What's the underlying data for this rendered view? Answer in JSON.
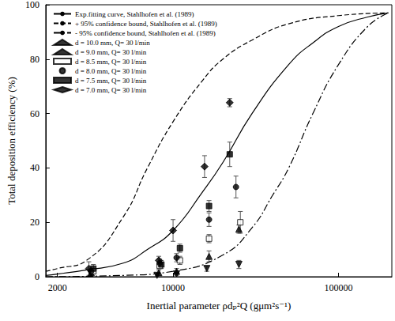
{
  "chart_data": {
    "type": "scatter",
    "x_label": "Inertial parameter ρdₚ²Q (gμm²s⁻¹)",
    "y_label": "Total deposition efficiency (%)",
    "log": "x",
    "xlim": [
      1700,
      210000
    ],
    "xticks": [
      2000,
      10000,
      100000
    ],
    "ylim": [
      0,
      100
    ],
    "yticks": [
      0,
      20,
      40,
      60,
      80,
      100
    ],
    "legend": "top-left",
    "grid": false,
    "series": [
      {
        "name": "Exp.fitting curve, Stahlhofen et al. (1989)",
        "type": "line",
        "line_style": "solid",
        "color": "#000000",
        "x": [
          1700,
          2000,
          3000,
          5000,
          7000,
          10000,
          15000,
          20000,
          30000,
          50000,
          70000,
          100000,
          150000,
          200000
        ],
        "values": [
          0.5,
          1,
          2.5,
          5,
          10,
          17,
          31,
          42,
          60,
          78,
          86,
          92,
          95.5,
          97
        ]
      },
      {
        "name": "+ 95% confidence bound, Stahlhofen et al. (1989)",
        "type": "line",
        "line_style": "dashed",
        "color": "#000000",
        "x": [
          1700,
          2000,
          3000,
          5000,
          7000,
          10000,
          15000,
          20000,
          30000,
          50000,
          100000,
          200000
        ],
        "values": [
          2,
          3,
          6,
          22,
          40,
          57,
          72,
          80,
          87,
          93,
          96,
          97
        ]
      },
      {
        "name": "- 95% confidence bound, Stahlhofen et al. (1989)",
        "type": "line",
        "line_style": "dashdot",
        "color": "#000000",
        "x": [
          1700,
          5000,
          10000,
          20000,
          30000,
          40000,
          50000,
          70000,
          100000,
          150000,
          200000
        ],
        "values": [
          0,
          0.5,
          2,
          8,
          18,
          30,
          40,
          60,
          78,
          92,
          97
        ]
      },
      {
        "name": "d = 10.0 mm, Q= 30 l/min",
        "type": "scatter",
        "marker": "triangle_down",
        "color": "#000000",
        "x": [
          3200,
          8000,
          10500,
          16000,
          25000
        ],
        "values": [
          1,
          0.5,
          1,
          3,
          4.5
        ],
        "errors": [
          1,
          0.5,
          0.5,
          1,
          1.5
        ]
      },
      {
        "name": "d = 9.0 mm, Q= 30 l/min",
        "type": "scatter",
        "marker": "triangle",
        "color": "#000000",
        "x": [
          3200,
          8200,
          10500,
          16500,
          25000
        ],
        "values": [
          1.5,
          1.5,
          2,
          7.5,
          17.5
        ],
        "errors": [
          1,
          1,
          1,
          2,
          1.5
        ]
      },
      {
        "name": "d = 8.5 mm, Q= 30 l/min",
        "type": "scatter",
        "marker": "open_square",
        "color": "#000000",
        "x": [
          3300,
          8300,
          11000,
          16500,
          25500
        ],
        "values": [
          2,
          4,
          6,
          14,
          20
        ],
        "errors": [
          1,
          1,
          1.5,
          1.5,
          4
        ]
      },
      {
        "name": "d = 8.0 mm, Q= 30 l/min",
        "type": "scatter",
        "marker": "circle",
        "color": "#000000",
        "x": [
          3200,
          8300,
          10500,
          16500,
          24000
        ],
        "values": [
          2,
          5,
          7,
          21,
          33
        ],
        "errors": [
          1,
          1.5,
          1.5,
          2.5,
          4
        ]
      },
      {
        "name": "d = 7.5 mm, Q= 30 l/min",
        "type": "scatter",
        "marker": "square",
        "color": "#000000",
        "x": [
          3300,
          8500,
          11000,
          16500,
          22000
        ],
        "values": [
          3,
          4.5,
          10.5,
          26,
          45
        ],
        "errors": [
          1.5,
          1.5,
          1.5,
          2,
          4.5
        ]
      },
      {
        "name": "d = 7.0 mm, Q= 30 l/min",
        "type": "scatter",
        "marker": "diamond",
        "color": "#000000",
        "x": [
          3100,
          8200,
          10000,
          15500,
          22000
        ],
        "values": [
          3,
          6,
          17,
          40.5,
          64
        ],
        "errors": [
          2.5,
          1.5,
          4,
          4,
          1.5
        ]
      }
    ]
  }
}
